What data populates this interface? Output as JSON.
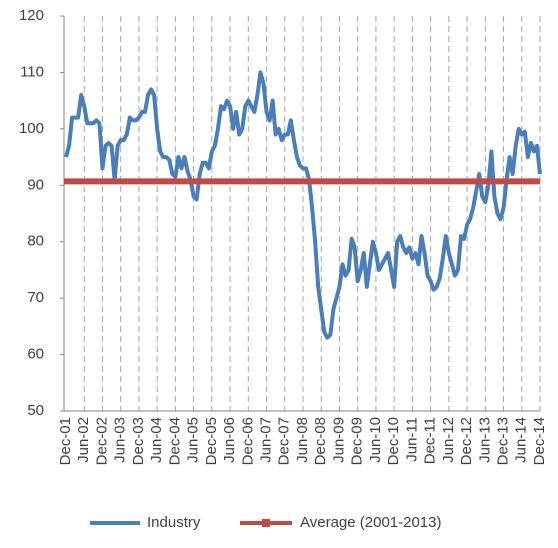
{
  "chart_data": {
    "type": "line",
    "categories": [
      "Dec-01",
      null,
      null,
      null,
      null,
      null,
      "Jun-02",
      null,
      null,
      null,
      null,
      null,
      "Dec-02",
      null,
      null,
      null,
      null,
      null,
      "Jun-03",
      null,
      null,
      null,
      null,
      null,
      "Dec-03",
      null,
      null,
      null,
      null,
      null,
      "Jun-04",
      null,
      null,
      null,
      null,
      null,
      "Dec-04",
      null,
      null,
      null,
      null,
      null,
      "Jun-05",
      null,
      null,
      null,
      null,
      null,
      "Dec-05",
      null,
      null,
      null,
      null,
      null,
      "Jun-06",
      null,
      null,
      null,
      null,
      null,
      "Dec-06",
      null,
      null,
      null,
      null,
      null,
      "Jun-07",
      null,
      null,
      null,
      null,
      null,
      "Dec-07",
      null,
      null,
      null,
      null,
      null,
      "Jun-08",
      null,
      null,
      null,
      null,
      null,
      "Dec-08",
      null,
      null,
      null,
      null,
      null,
      "Jun-09",
      null,
      null,
      null,
      null,
      null,
      "Dec-09",
      null,
      null,
      null,
      null,
      null,
      "Jun-10",
      null,
      null,
      null,
      null,
      null,
      "Dec-10",
      null,
      null,
      null,
      null,
      null,
      "Jun-11",
      null,
      null,
      null,
      null,
      null,
      "Dec-11",
      null,
      null,
      null,
      null,
      null,
      "Jun-12",
      null,
      null,
      null,
      null,
      null,
      "Dec-12",
      null,
      null,
      null,
      null,
      null,
      "Jun-13",
      null,
      null,
      null,
      null,
      null,
      "Dec-13",
      null,
      null,
      null,
      null,
      null,
      "Jun-14",
      null,
      null,
      null,
      null,
      null,
      "Dec-14"
    ],
    "series": [
      {
        "name": "Industry",
        "color": "#4a7ebb",
        "values": [
          95,
          97,
          102,
          102,
          102,
          106,
          104,
          101,
          101,
          101,
          101.5,
          101,
          93,
          97,
          97.5,
          97,
          91,
          97,
          98,
          98,
          99,
          102,
          101.5,
          101.5,
          102,
          103,
          103,
          106,
          107,
          106,
          100,
          96,
          95,
          95,
          94.5,
          92,
          91.5,
          95,
          93,
          95,
          92.5,
          91,
          88,
          87.5,
          92,
          94,
          94,
          93,
          96,
          97,
          100,
          104,
          103.5,
          105,
          104,
          100,
          103,
          99,
          100,
          104,
          105,
          104,
          103,
          106,
          110,
          108,
          103,
          101.5,
          105,
          99,
          100,
          98,
          99,
          99,
          101.5,
          98,
          95,
          93.5,
          93,
          93,
          91,
          86,
          80,
          72,
          68,
          64,
          63,
          63.5,
          68,
          70,
          72,
          76,
          74,
          75,
          80.5,
          79,
          73,
          75,
          78,
          72,
          76,
          80,
          78,
          75,
          76,
          77,
          78,
          75,
          72,
          80,
          81,
          79,
          78,
          79,
          77,
          78,
          76,
          81,
          78,
          74,
          73,
          71.5,
          72,
          73.5,
          77,
          81,
          78,
          76,
          74,
          75,
          81,
          80.5,
          83,
          84,
          86,
          89,
          92,
          88,
          87,
          90,
          96,
          88,
          85,
          84,
          86,
          91,
          95,
          92,
          97,
          100,
          99,
          99.5,
          95,
          97.5,
          96,
          97,
          92
        ]
      }
    ],
    "reference_line": {
      "name": "Average (2001-2013)",
      "color": "#be4b48",
      "value": 90.7
    },
    "ylim": [
      50,
      120
    ],
    "yticks": [
      50,
      60,
      70,
      80,
      90,
      100,
      110,
      120
    ],
    "grid": "vertical-dashed",
    "legend": "bottom"
  }
}
